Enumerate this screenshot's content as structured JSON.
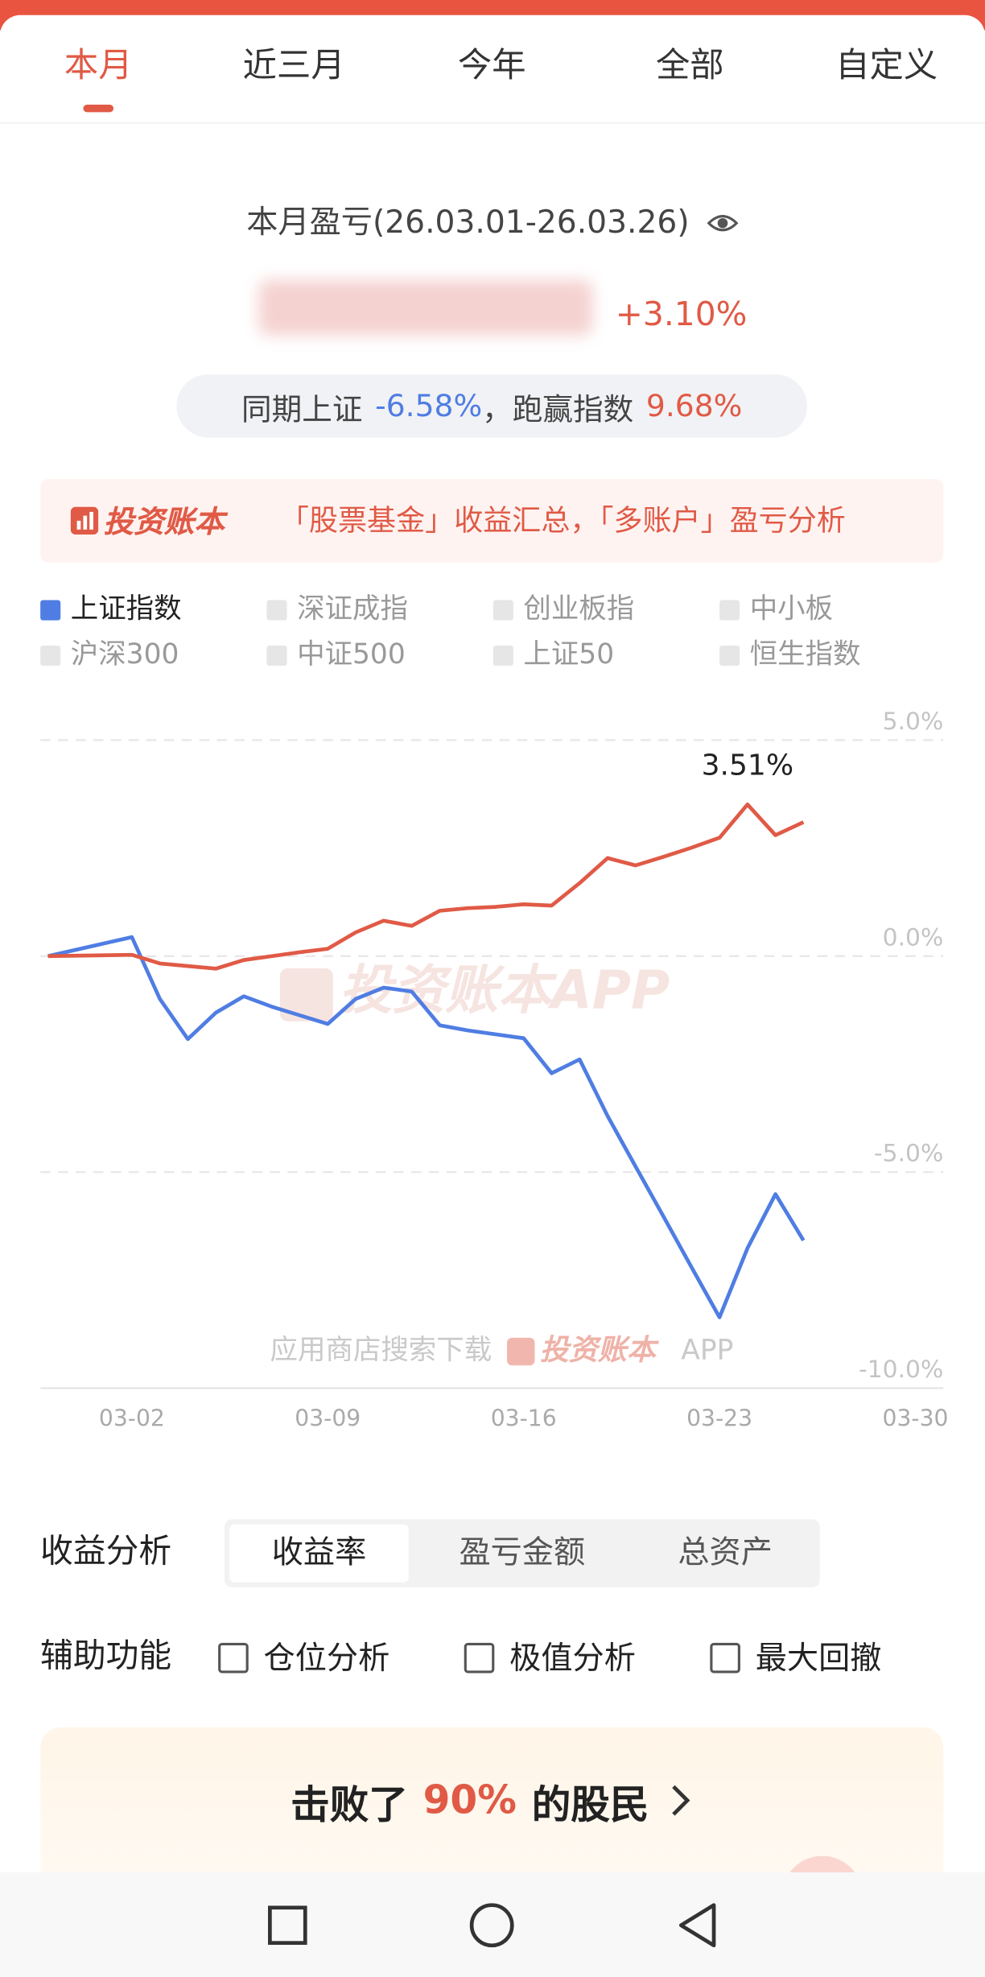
{
  "tabs": {
    "items": [
      "本月",
      "近三月",
      "今年",
      "全部",
      "自定义"
    ]
  },
  "summary": {
    "title": "本月盈亏(26.03.01-26.03.26)",
    "return_rate": "+3.10%",
    "compare_label": "同期上证",
    "compare_value": "-6.58%",
    "separator": "，",
    "beat_label": "跑赢指数",
    "beat_value": "9.68%"
  },
  "banner": {
    "brand": "投资账本",
    "text": "「股票基金」收益汇总，「多账户」盈亏分析"
  },
  "chart_data": {
    "type": "line",
    "x": [
      "02-27",
      "03-02",
      "03-03",
      "03-04",
      "03-05",
      "03-06",
      "03-07",
      "03-08",
      "03-09",
      "03-10",
      "03-11",
      "03-12",
      "03-13",
      "03-14",
      "03-15",
      "03-16",
      "03-17",
      "03-18",
      "03-19",
      "03-20",
      "03-21",
      "03-22",
      "03-23",
      "03-24",
      "03-25",
      "03-26"
    ],
    "xlim": [
      "02-27",
      "03-31"
    ],
    "xticks": [
      "03-02",
      "03-09",
      "03-16",
      "03-23",
      "03-30"
    ],
    "ylim": [
      -10,
      5
    ],
    "yticks": [
      {
        "value": 5,
        "label": "5.0%"
      },
      {
        "value": 0,
        "label": "0.0%"
      },
      {
        "value": -5,
        "label": "-5.0%"
      },
      {
        "value": -10,
        "label": "-10.0%"
      }
    ],
    "grid": true,
    "series": [
      {
        "color": "#e05a46",
        "values": [
          0,
          0.03,
          -0.17,
          -0.23,
          -0.29,
          -0.09,
          0,
          0.09,
          0.17,
          0.55,
          0.82,
          0.7,
          1.05,
          1.11,
          1.14,
          1.2,
          1.17,
          1.69,
          2.27,
          2.1,
          2.3,
          2.51,
          2.74,
          3.51,
          2.8,
          3.1
        ]
      },
      {
        "name": "上证指数",
        "color": "#4f7de3",
        "values": [
          0,
          0.44,
          -0.99,
          -1.92,
          -1.31,
          -0.93,
          -1.17,
          -1.37,
          -1.57,
          -0.99,
          -0.73,
          -0.82,
          -1.6,
          -1.72,
          -1.81,
          -1.9,
          -2.71,
          -2.39,
          -3.7,
          -4.87,
          -6.03,
          -7.2,
          -8.36,
          -6.76,
          -5.51,
          -6.58
        ]
      }
    ],
    "other_indices": [
      "深证成指",
      "创业板指",
      "中小板",
      "沪深300",
      "中证500",
      "上证50",
      "恒生指数"
    ],
    "annotations": [
      {
        "x": "03-24",
        "value": 3.51,
        "label": "3.51%"
      }
    ],
    "watermark": "投资账本APP",
    "footer_watermark": {
      "prefix": "应用商店搜索下载",
      "brand": "投资账本",
      "suffix": "APP"
    }
  },
  "analysis": {
    "label": "收益分析",
    "options": [
      "收益率",
      "盈亏金额",
      "总资产"
    ]
  },
  "tools": {
    "label": "辅助功能",
    "options": [
      "仓位分析",
      "极值分析",
      "最大回撤"
    ]
  },
  "rank": {
    "prefix": "击败了",
    "value": "90%",
    "suffix": "的股民"
  }
}
